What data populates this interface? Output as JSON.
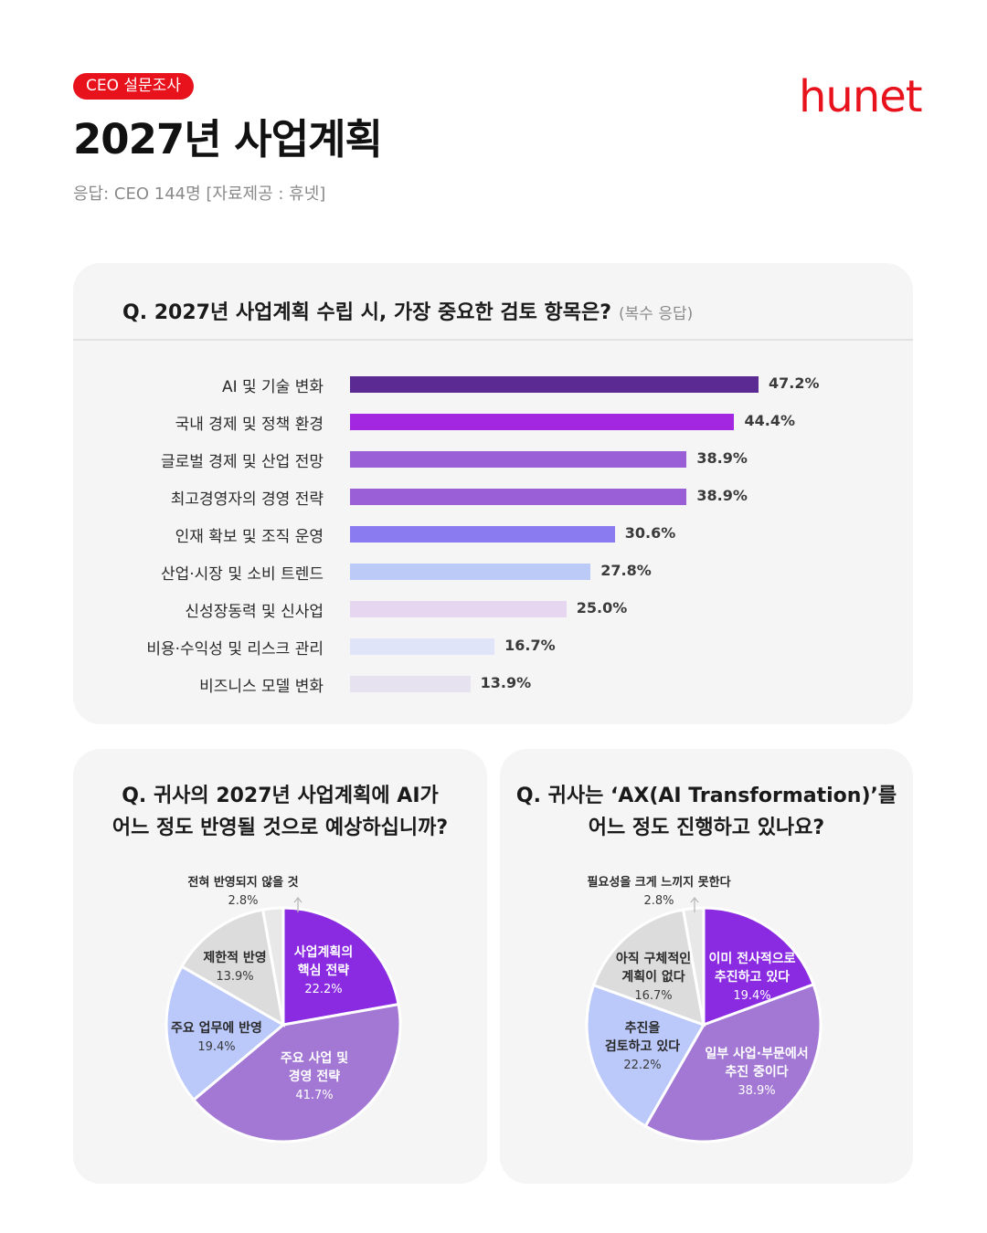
{
  "header": {
    "badge": "CEO 설문조사",
    "title": "2027년 사업계획",
    "subtitle": "응답: CEO 144명 [자료제공 : 휴넷]",
    "logo": "hunet",
    "brand_color": "#e8121d"
  },
  "q1": {
    "question": "Q. 2027년 사업계획 수립 시, 가장 중요한 검토 항목은?",
    "note": "(복수 응답)"
  },
  "q2": {
    "question_line1": "Q. 귀사의 2027년 사업계획에 AI가",
    "question_line2": "어느 정도 반영될 것으로 예상하십니까?"
  },
  "q3": {
    "question_line1": "Q. 귀사는 ‘AX(AI Transformation)’를",
    "question_line2": "어느 정도 진행하고 있나요?"
  },
  "chart_data": [
    {
      "type": "bar",
      "orientation": "horizontal",
      "categories": [
        "AI 및 기술 변화",
        "국내 경제 및 정책 환경",
        "글로벌 경제 및 산업 전망",
        "최고경영자의 경영 전략",
        "인재 확보 및 조직 운영",
        "산업·시장 및 소비 트렌드",
        "신성장동력 및 신사업",
        "비용·수익성 및 리스크 관리",
        "비즈니스 모델 변화"
      ],
      "values": [
        47.2,
        44.4,
        38.9,
        38.9,
        30.6,
        27.8,
        25.0,
        16.7,
        13.9
      ],
      "value_labels": [
        "47.2%",
        "44.4%",
        "38.9%",
        "38.9%",
        "30.6%",
        "27.8%",
        "25.0%",
        "16.7%",
        "13.9%"
      ],
      "colors": [
        "#5b2a92",
        "#a326e0",
        "#9a5fd6",
        "#9a5fd6",
        "#8a7cf0",
        "#bccaf8",
        "#e6d6f0",
        "#dfe4f8",
        "#e6e2ef"
      ]
    },
    {
      "type": "pie",
      "slices": [
        {
          "label_lines": [
            "사업계획의",
            "핵심 전략"
          ],
          "value": 22.2,
          "value_label": "22.2%",
          "color": "#8a2be2"
        },
        {
          "label_lines": [
            "주요 사업 및",
            "경영 전략"
          ],
          "value": 41.7,
          "value_label": "41.7%",
          "color": "#a378d4"
        },
        {
          "label_lines": [
            "주요 업무에 반영"
          ],
          "value": 19.4,
          "value_label": "19.4%",
          "color": "#bac8fa"
        },
        {
          "label_lines": [
            "제한적 반영"
          ],
          "value": 13.9,
          "value_label": "13.9%",
          "color": "#dcdcdc"
        },
        {
          "label_lines": [
            "전혀 반영되지 않을 것"
          ],
          "value": 2.8,
          "value_label": "2.8%",
          "color": "#e8e8e8"
        }
      ]
    },
    {
      "type": "pie",
      "slices": [
        {
          "label_lines": [
            "이미 전사적으로",
            "추진하고 있다"
          ],
          "value": 19.4,
          "value_label": "19.4%",
          "color": "#8a2be2"
        },
        {
          "label_lines": [
            "일부 사업·부문에서",
            "추진 중이다"
          ],
          "value": 38.9,
          "value_label": "38.9%",
          "color": "#a378d4"
        },
        {
          "label_lines": [
            "추진을",
            "검토하고 있다"
          ],
          "value": 22.2,
          "value_label": "22.2%",
          "color": "#bac8fa"
        },
        {
          "label_lines": [
            "아직 구체적인",
            "계획이 없다"
          ],
          "value": 16.7,
          "value_label": "16.7%",
          "color": "#dcdcdc"
        },
        {
          "label_lines": [
            "필요성을 크게 느끼지 못한다"
          ],
          "value": 2.8,
          "value_label": "2.8%",
          "color": "#e8e8e8"
        }
      ]
    }
  ]
}
